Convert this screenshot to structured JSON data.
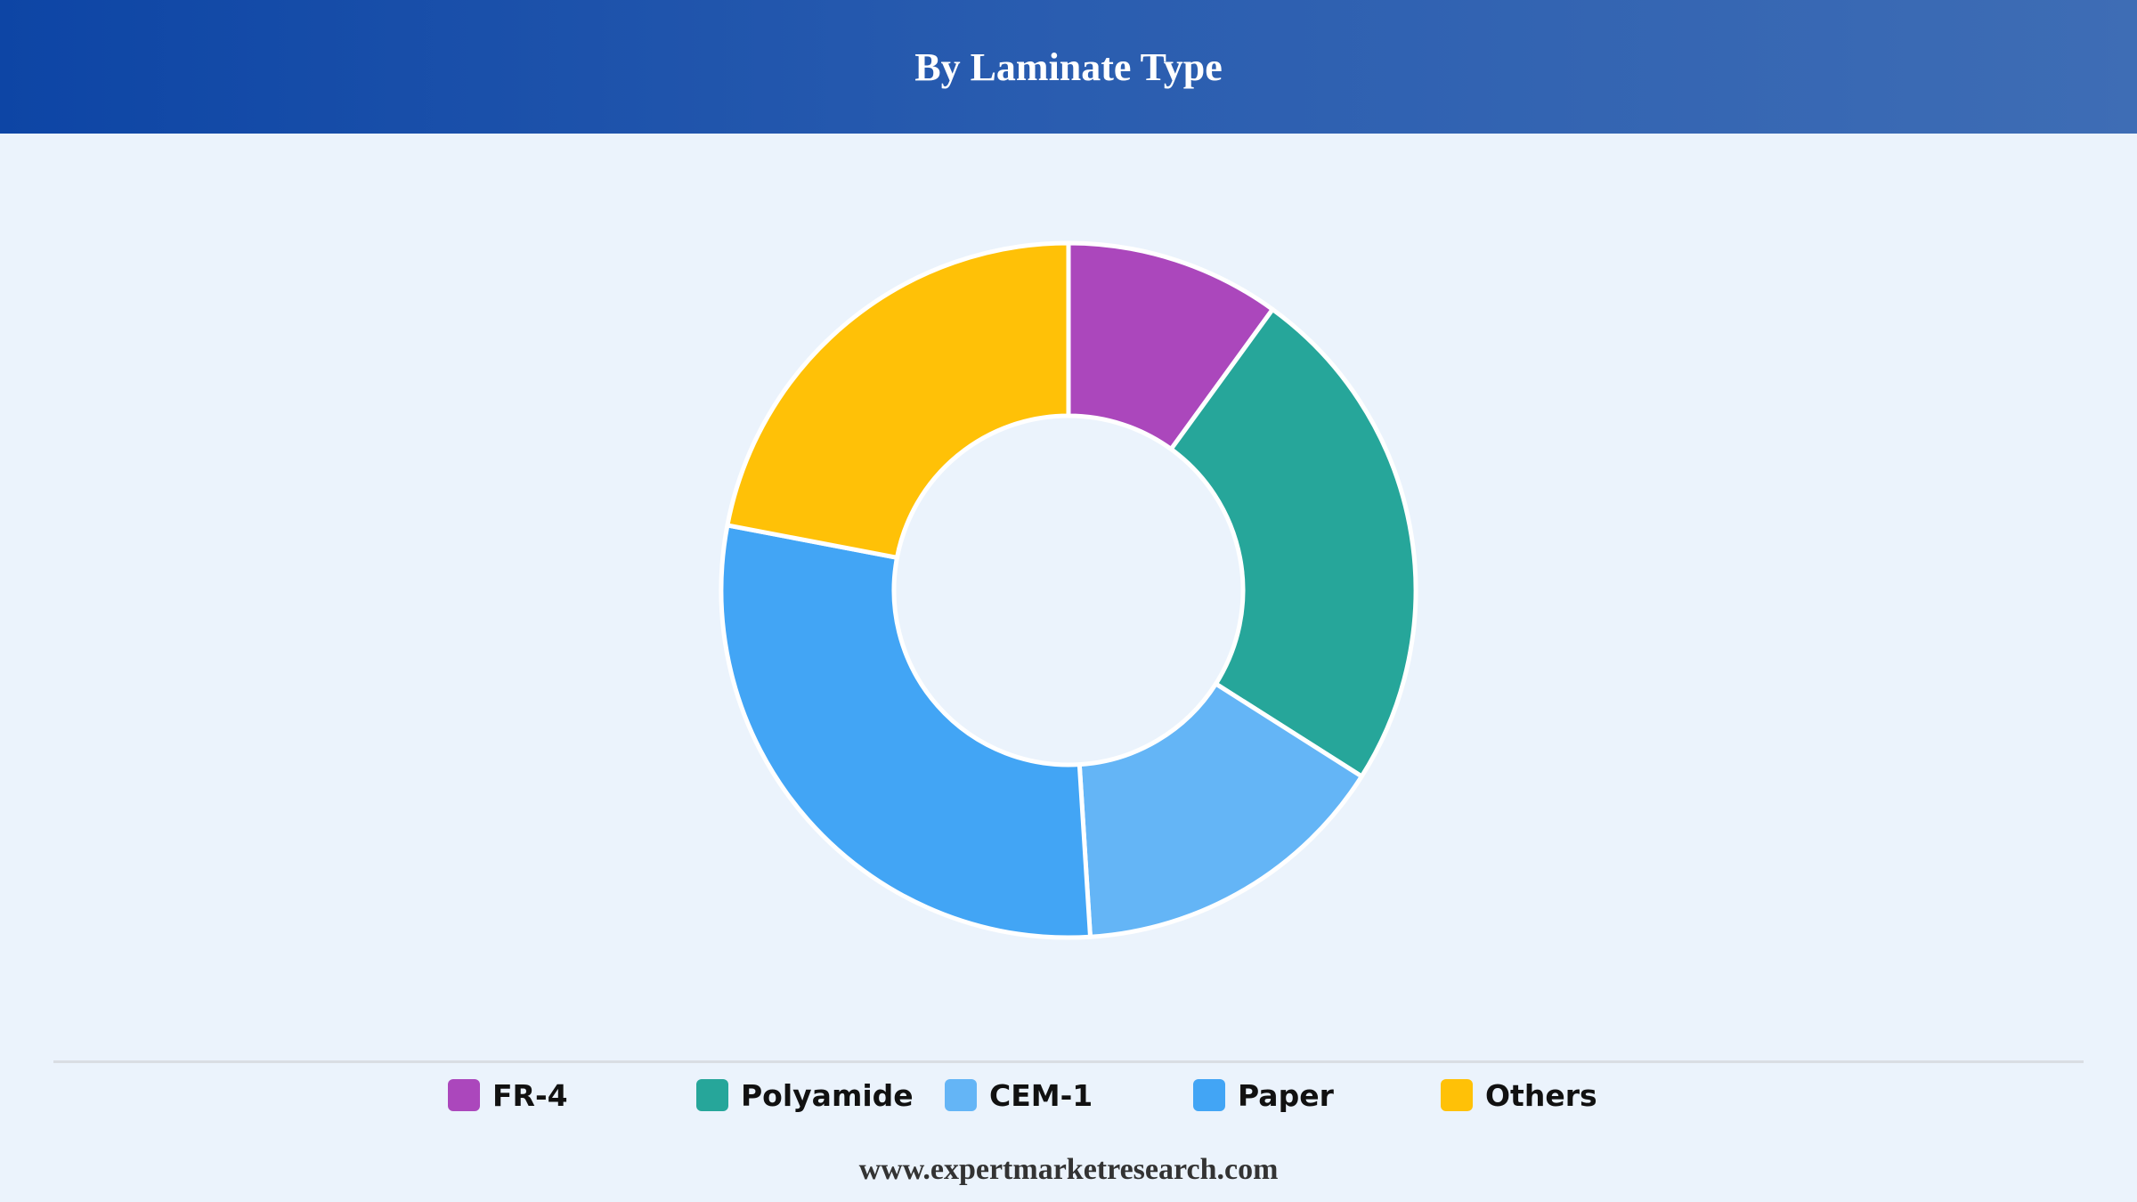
{
  "header": {
    "title": "By Laminate Type"
  },
  "chart_data": {
    "type": "pie",
    "variant": "donut",
    "title": "By Laminate Type",
    "categories": [
      "FR-4",
      "Polyamide",
      "CEM-1",
      "Paper",
      "Others"
    ],
    "values": [
      10,
      24,
      15,
      29,
      22
    ],
    "unit": "%",
    "colors": [
      "#ab47bc",
      "#26a69a",
      "#64b5f6",
      "#42a5f5",
      "#ffc107"
    ],
    "legend_position": "bottom",
    "start_angle": "top",
    "direction": "clockwise"
  },
  "footer": {
    "source": "www.expertmarketresearch.com"
  }
}
